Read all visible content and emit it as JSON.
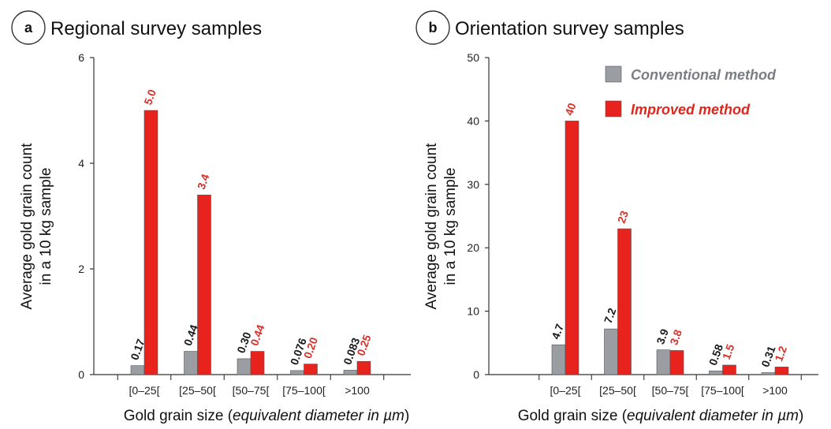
{
  "colors": {
    "conventional": "#9a9da2",
    "improved": "#e8221c",
    "conventional_label": "#1a1a1a",
    "improved_label": "#d6332b",
    "legend_conventional_text": "#7a7d82",
    "legend_improved_text": "#e0261d"
  },
  "chart_data": [
    {
      "type": "bar",
      "panel_letter": "a",
      "title": "Regional survey samples",
      "categories": [
        "[0–25[",
        "[25–50[",
        "[50–75[",
        "[75–100[",
        ">100"
      ],
      "series": [
        {
          "key": "conventional",
          "values": [
            0.17,
            0.44,
            0.3,
            0.076,
            0.083
          ],
          "labels": [
            "0.17",
            "0.44",
            "0.30",
            "0.076",
            "0.083"
          ]
        },
        {
          "key": "improved",
          "values": [
            5.0,
            3.4,
            0.44,
            0.2,
            0.25
          ],
          "labels": [
            "5.0",
            "3.4",
            "0.44",
            "0.20",
            "0.25"
          ]
        }
      ],
      "ylim": [
        0,
        6
      ],
      "yticks": [
        0,
        2,
        4,
        6
      ],
      "ylabel_lines": [
        "Average gold grain count",
        "in a 10 kg sample"
      ],
      "xlabel_plain": "Gold grain size (",
      "xlabel_italic": "equivalent diameter in µm",
      "xlabel_end": ")",
      "legend": null
    },
    {
      "type": "bar",
      "panel_letter": "b",
      "title": "Orientation survey samples",
      "categories": [
        "[0–25[",
        "[25–50[",
        "[50–75[",
        "[75–100[",
        ">100"
      ],
      "series": [
        {
          "key": "conventional",
          "name": "Conventional method",
          "values": [
            4.7,
            7.2,
            3.9,
            0.58,
            0.31
          ],
          "labels": [
            "4.7",
            "7.2",
            "3.9",
            "0.58",
            "0.31"
          ]
        },
        {
          "key": "improved",
          "name": "Improved method",
          "values": [
            40,
            23,
            3.8,
            1.5,
            1.2
          ],
          "labels": [
            "40",
            "23",
            "3.8",
            "1.5",
            "1.2"
          ]
        }
      ],
      "ylim": [
        0,
        50
      ],
      "yticks": [
        0,
        10,
        20,
        30,
        40,
        50
      ],
      "ylabel_lines": [
        "Average gold grain count",
        "in a 10 kg sample"
      ],
      "xlabel_plain": "Gold grain size (",
      "xlabel_italic": "equivalent diameter in µm",
      "xlabel_end": ")",
      "legend": "top-right"
    }
  ]
}
